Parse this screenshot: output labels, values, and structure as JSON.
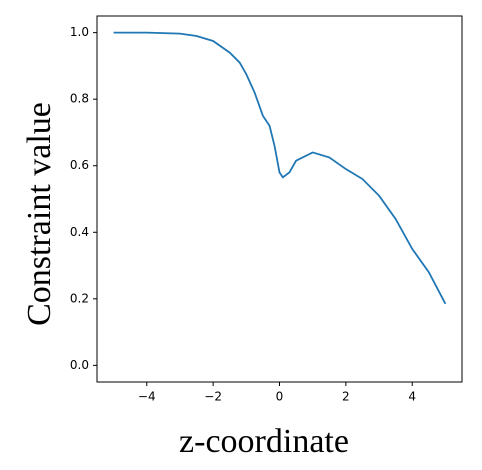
{
  "chart_data": {
    "type": "line",
    "x_label": "z-coordinate",
    "y_label": "Constraint value",
    "x": [
      -5,
      -4,
      -3,
      -2.5,
      -2,
      -1.5,
      -1.2,
      -1,
      -0.75,
      -0.5,
      -0.3,
      -0.15,
      0,
      0.1,
      0.3,
      0.5,
      1,
      1.5,
      2,
      2.5,
      3,
      3.5,
      4,
      4.5,
      5
    ],
    "series": [
      {
        "color": "#1f77b4",
        "values": [
          1.0,
          1.0,
          0.997,
          0.99,
          0.975,
          0.94,
          0.91,
          0.875,
          0.82,
          0.75,
          0.72,
          0.66,
          0.58,
          0.565,
          0.58,
          0.615,
          0.64,
          0.625,
          0.59,
          0.56,
          0.51,
          0.44,
          0.35,
          0.28,
          0.185
        ]
      }
    ],
    "xlim": [
      -5.5,
      5.5
    ],
    "ylim": [
      -0.05,
      1.05
    ],
    "xticks": [
      {
        "value": -4,
        "label": "−4"
      },
      {
        "value": -2,
        "label": "−2"
      },
      0,
      2,
      4
    ],
    "yticks": [
      {
        "value": 0,
        "label": "0.0"
      },
      0.2,
      0.4,
      0.6,
      0.8,
      {
        "value": 1,
        "label": "1.0"
      }
    ]
  }
}
